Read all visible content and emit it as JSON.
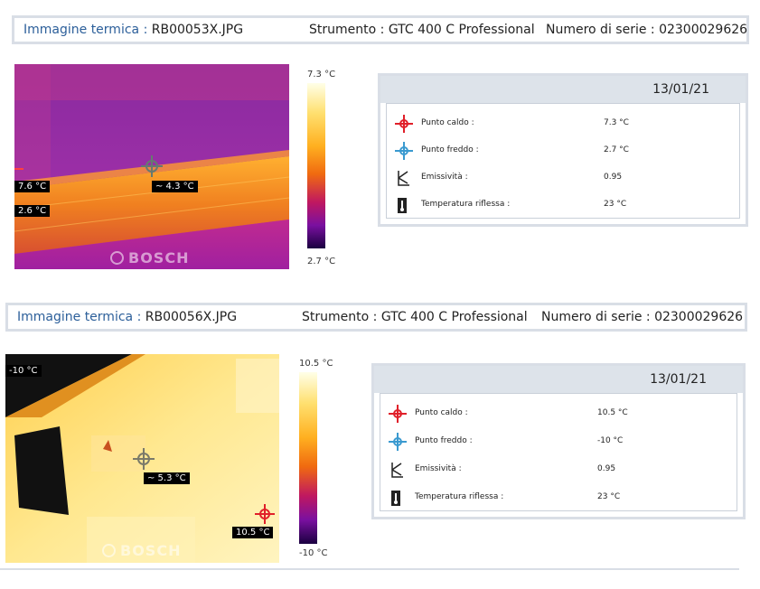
{
  "reports": [
    {
      "image_label": "Immagine termica :",
      "image_file": "RB00053X.JPG",
      "instrument_label": "Strumento :",
      "instrument": "GTC 400 C Professional",
      "serial_label": "Numero di serie :",
      "serial": "02300029626",
      "tags": {
        "left_top": "7.6 °C",
        "left_bottom": "2.6 °C",
        "center": "~ 4.3 °C"
      },
      "watermark": "BOSCH",
      "scale_max": "7.3 °C",
      "scale_min": "2.7 °C",
      "date": "13/01/21",
      "rows": [
        {
          "icon": "hot-spot-icon",
          "label": "Punto caldo :",
          "value": "7.3 °C"
        },
        {
          "icon": "cold-spot-icon",
          "label": "Punto freddo :",
          "value": "2.7 °C"
        },
        {
          "icon": "emissivity-icon",
          "label": "Emissività :",
          "value": "0.95"
        },
        {
          "icon": "reflected-temperature-icon",
          "label": "Temperatura riflessa :",
          "value": "23 °C"
        }
      ]
    },
    {
      "image_label": "Immagine termica :",
      "image_file": "RB00056X.JPG",
      "instrument_label": "Strumento :",
      "instrument": "GTC 400 C Professional",
      "serial_label": "Numero di serie :",
      "serial": "02300029626",
      "tags": {
        "top_left": "-10 °C",
        "center": "~ 5.3 °C",
        "bottom_right": "10.5 °C"
      },
      "watermark": "BOSCH",
      "scale_max": "10.5 °C",
      "scale_min": "-10 °C",
      "date": "13/01/21",
      "rows": [
        {
          "icon": "hot-spot-icon",
          "label": "Punto caldo :",
          "value": "10.5 °C"
        },
        {
          "icon": "cold-spot-icon",
          "label": "Punto freddo :",
          "value": "-10 °C"
        },
        {
          "icon": "emissivity-icon",
          "label": "Emissività :",
          "value": "0.95"
        },
        {
          "icon": "reflected-temperature-icon",
          "label": "Temperatura riflessa :",
          "value": "23 °C"
        }
      ]
    }
  ],
  "colors": {
    "label_blue": "#2c5f9a",
    "hot": "#e0202a",
    "cold": "#3a9ad0",
    "border": "#d9dee6"
  }
}
